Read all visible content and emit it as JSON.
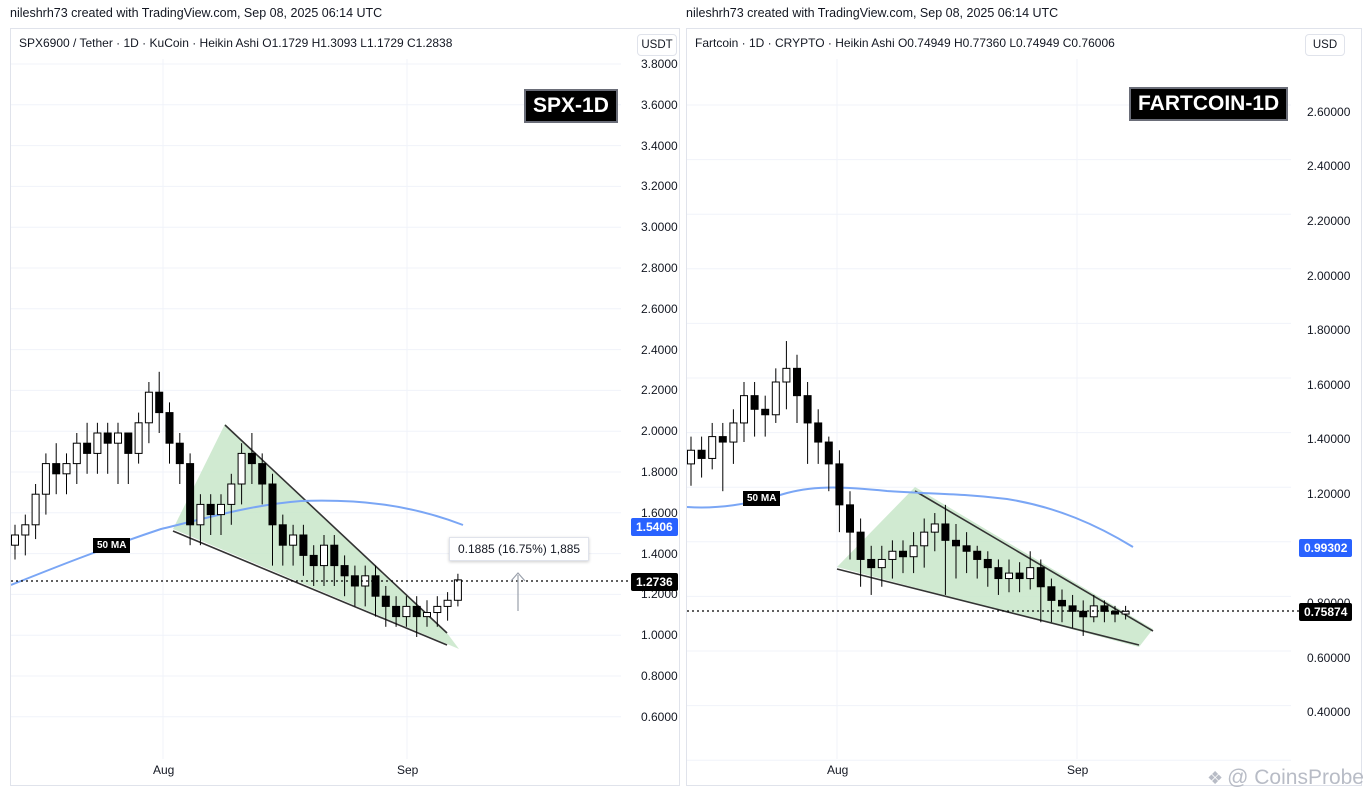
{
  "left": {
    "caption": "nileshrh73 created with TradingView.com, Sep 08, 2025 06:14 UTC",
    "legend": "SPX6900 / Tether · 1D · KuCoin · Heikin Ashi  O1.1729  H1.3093  L1.1729  C1.2838",
    "currency": "USDT",
    "title": "SPX-1D",
    "price_ticks": [
      "3.8000",
      "3.6000",
      "3.4000",
      "3.2000",
      "3.0000",
      "2.8000",
      "2.6000",
      "2.4000",
      "2.2000",
      "2.0000",
      "1.8000",
      "1.6000",
      "1.4000",
      "1.2000",
      "1.0000",
      "0.8000",
      "0.6000"
    ],
    "ma_price_tag": "1.5406",
    "last_price_tag": "1.2736",
    "x_labels": [
      "Aug",
      "Sep"
    ],
    "ma_label": "50 MA",
    "measure_label": "0.1885 (16.75%) 1,885"
  },
  "right": {
    "caption": "nileshrh73 created with TradingView.com, Sep 08, 2025 06:14 UTC",
    "legend": "Fartcoin · 1D · CRYPTO · Heikin Ashi  O0.74949  H0.77360  L0.74949  C0.76006",
    "currency": "USD",
    "title": "FARTCOIN-1D",
    "price_ticks": [
      "2.60000",
      "2.40000",
      "2.20000",
      "2.00000",
      "1.80000",
      "1.60000",
      "1.40000",
      "1.20000",
      "0.80000",
      "0.60000",
      "0.40000"
    ],
    "ma_price_tag": "0.99302",
    "last_price_tag": "0.75874",
    "x_labels": [
      "Aug",
      "Sep"
    ],
    "ma_label": "50 MA"
  },
  "watermark": "@ CoinsProbe",
  "colors": {
    "up": "#ffffff",
    "down": "#000000",
    "ma": "#7aa6f5",
    "wedge_fill": "#c8e6c9",
    "ma_tag": "#2962ff",
    "last_tag": "#000000"
  }
}
